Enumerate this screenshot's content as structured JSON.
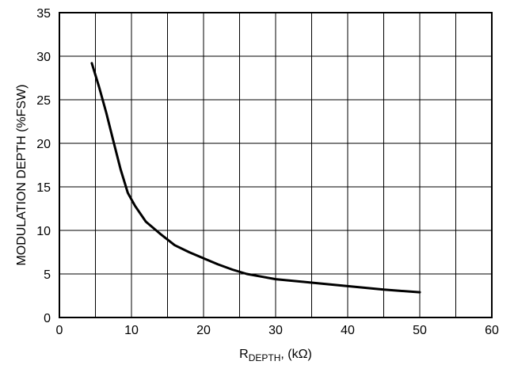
{
  "chart_data": {
    "type": "line",
    "xlabel_main": "R",
    "xlabel_sub": "DEPTH",
    "xlabel_tail": ", (kΩ)",
    "ylabel": "MODULATION DEPTH (%FSW)",
    "xlim": [
      0,
      60
    ],
    "ylim": [
      0,
      35
    ],
    "x_ticks": [
      0,
      10,
      20,
      30,
      40,
      50,
      60
    ],
    "y_ticks": [
      0,
      5,
      10,
      15,
      20,
      25,
      30,
      35
    ],
    "grid": true,
    "series": [
      {
        "color": "#000000",
        "x": [
          4.5,
          5.5,
          6.5,
          7.5,
          8.5,
          9.5,
          10.5,
          12,
          14,
          16,
          18,
          20,
          22,
          24,
          26,
          28,
          30,
          35,
          40,
          45,
          50
        ],
        "y": [
          29.2,
          26.5,
          23.5,
          20.2,
          17.0,
          14.3,
          12.8,
          11.0,
          9.6,
          8.3,
          7.5,
          6.8,
          6.1,
          5.5,
          5.0,
          4.7,
          4.4,
          4.0,
          3.6,
          3.2,
          2.9
        ]
      }
    ]
  }
}
